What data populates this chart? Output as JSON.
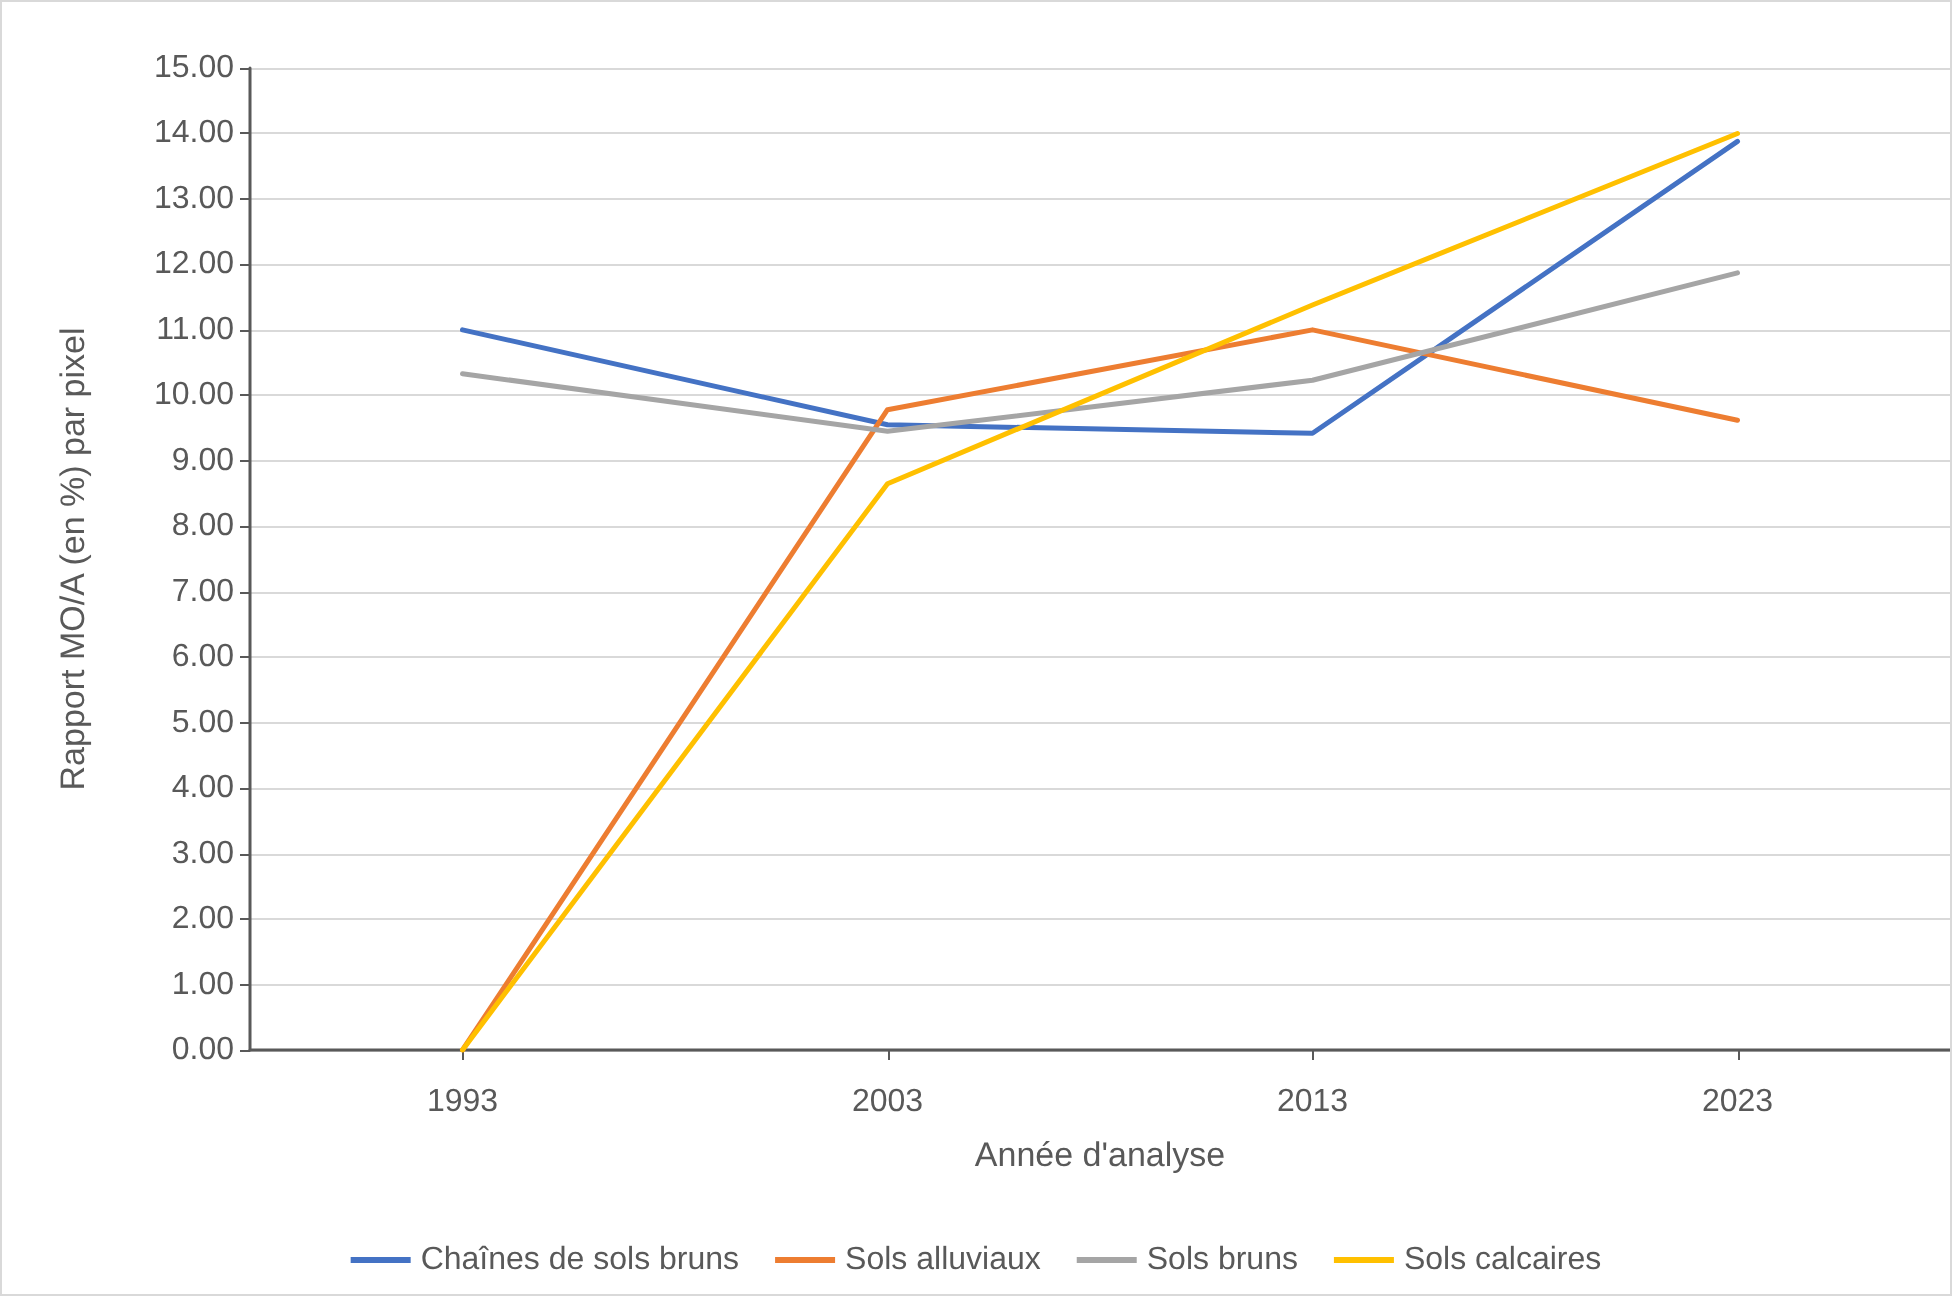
{
  "chart_data": {
    "type": "line",
    "xlabel": "Année d'analyse",
    "ylabel": "Rapport MO/A (en %) par pixel",
    "categories": [
      "1993",
      "2003",
      "2013",
      "2023"
    ],
    "series": [
      {
        "name": "Chaînes de sols bruns",
        "color": "#4472c4",
        "values": [
          11.0,
          9.55,
          9.42,
          13.88
        ]
      },
      {
        "name": "Sols alluviaux",
        "color": "#ed7d31",
        "values": [
          0,
          9.78,
          11.0,
          9.62
        ]
      },
      {
        "name": "Sols bruns",
        "color": "#a5a5a5",
        "values": [
          10.33,
          9.45,
          10.23,
          11.87
        ]
      },
      {
        "name": "Sols calcaires",
        "color": "#ffc000",
        "values": [
          0,
          8.65,
          11.38,
          14.0
        ]
      }
    ],
    "ylim": [
      0,
      15
    ],
    "yticks": [
      {
        "value": 0,
        "label": "0.00"
      },
      {
        "value": 1,
        "label": "1.00"
      },
      {
        "value": 2,
        "label": "2.00"
      },
      {
        "value": 3,
        "label": "3.00"
      },
      {
        "value": 4,
        "label": "4.00"
      },
      {
        "value": 5,
        "label": "5.00"
      },
      {
        "value": 6,
        "label": "6.00"
      },
      {
        "value": 7,
        "label": "7.00"
      },
      {
        "value": 8,
        "label": "8.00"
      },
      {
        "value": 9,
        "label": "9.00"
      },
      {
        "value": 10,
        "label": "10.00"
      },
      {
        "value": 11,
        "label": "11.00"
      },
      {
        "value": 12,
        "label": "12.00"
      },
      {
        "value": 13,
        "label": "13.00"
      },
      {
        "value": 14,
        "label": "14.00"
      },
      {
        "value": 15,
        "label": "15.00"
      }
    ],
    "grid": "y",
    "legend": "bottom",
    "marker": "none",
    "line_style": "solid"
  }
}
